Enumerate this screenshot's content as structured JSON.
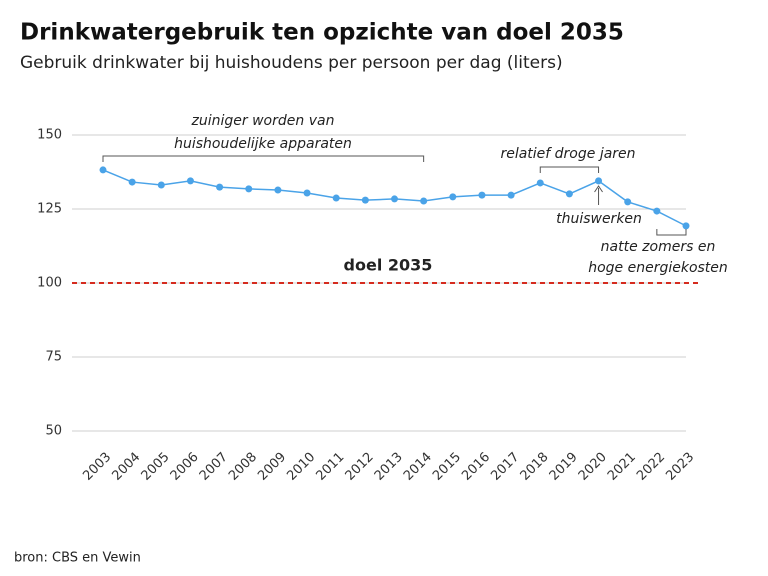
{
  "chart_data": {
    "type": "line",
    "title": "Drinkwatergebruik ten opzichte van doel 2035",
    "subtitle": "Gebruik drinkwater bij huishoudens per persoon per dag (liters)",
    "categories": [
      "2003",
      "2004",
      "2005",
      "2006",
      "2007",
      "2008",
      "2009",
      "2010",
      "2011",
      "2012",
      "2013",
      "2014",
      "2015",
      "2016",
      "2017",
      "2018",
      "2019",
      "2020",
      "2021",
      "2022",
      "2023"
    ],
    "values": [
      138.2,
      134.1,
      133.1,
      134.5,
      132.4,
      131.8,
      131.4,
      130.4,
      128.7,
      128.0,
      128.4,
      127.7,
      129.1,
      129.7,
      129.7,
      133.8,
      130.1,
      134.5,
      127.4,
      124.3,
      119.3
    ],
    "color": "#4aa3e8",
    "ylim": [
      50,
      150
    ],
    "yticks": [
      50,
      75,
      100,
      125,
      150
    ],
    "grid": true,
    "reference": {
      "value": 100,
      "label": "doel 2035",
      "color": "#d52b1e"
    },
    "annotations": [
      {
        "lines": [
          "zuiniger worden van",
          "huishoudelijke apparaten"
        ]
      },
      {
        "lines": [
          "relatief droge jaren"
        ]
      },
      {
        "lines": [
          "thuiswerken"
        ]
      },
      {
        "lines": [
          "natte zomers en",
          "hoge energiekosten"
        ]
      }
    ],
    "source": "bron: CBS en Vewin"
  }
}
